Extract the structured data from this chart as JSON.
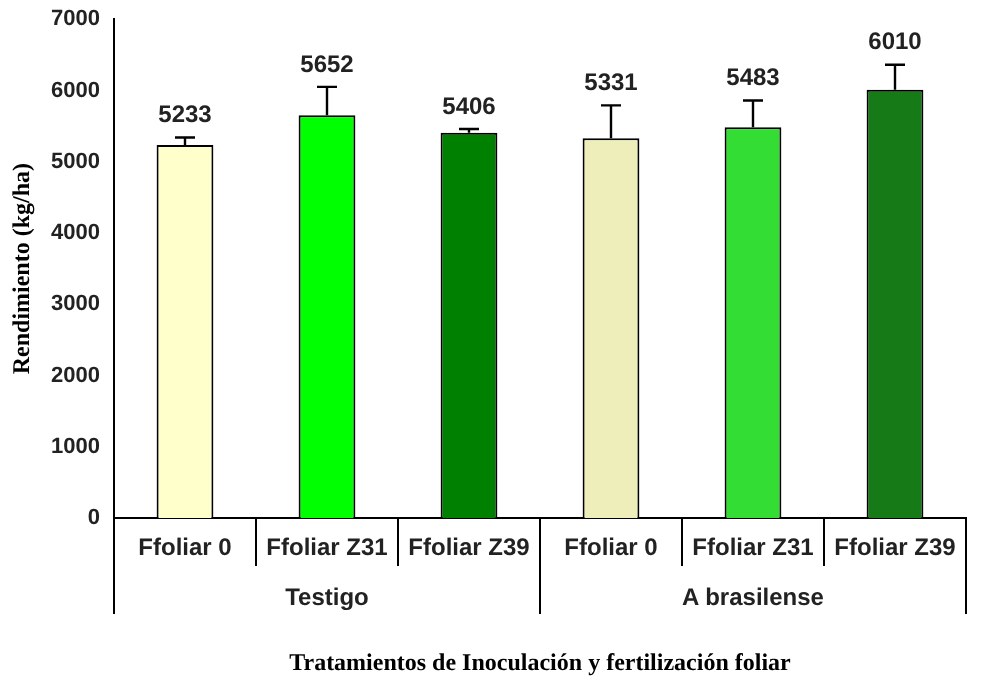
{
  "chart_data": {
    "type": "bar",
    "xlabel": "Tratamientos de Inoculación y fertilización foliar",
    "ylabel": "Rendimiento (kg/ha)",
    "categories": [
      "Ffoliar 0",
      "Ffoliar Z31",
      "Ffoliar Z39",
      "Ffoliar 0",
      "Ffoliar Z31",
      "Ffoliar Z39"
    ],
    "values": [
      5233,
      5652,
      5406,
      5331,
      5483,
      6010
    ],
    "colors": [
      "#ffffcc",
      "#00ff00",
      "#008000",
      "#eeeebb",
      "#33dd33",
      "#167a16"
    ],
    "errors": [
      [
        5233,
        5340
      ],
      [
        5652,
        6050
      ],
      [
        5406,
        5460
      ],
      [
        5331,
        5790
      ],
      [
        5483,
        5860
      ],
      [
        6010,
        6360
      ]
    ],
    "data_labels": true,
    "annotations": [
      "Testigo",
      "A brasilense"
    ],
    "ylim": [
      0,
      7000
    ],
    "yticks": [
      0,
      1000,
      2000,
      3000,
      4000,
      5000,
      6000,
      7000
    ],
    "grid": false,
    "legend": false
  }
}
